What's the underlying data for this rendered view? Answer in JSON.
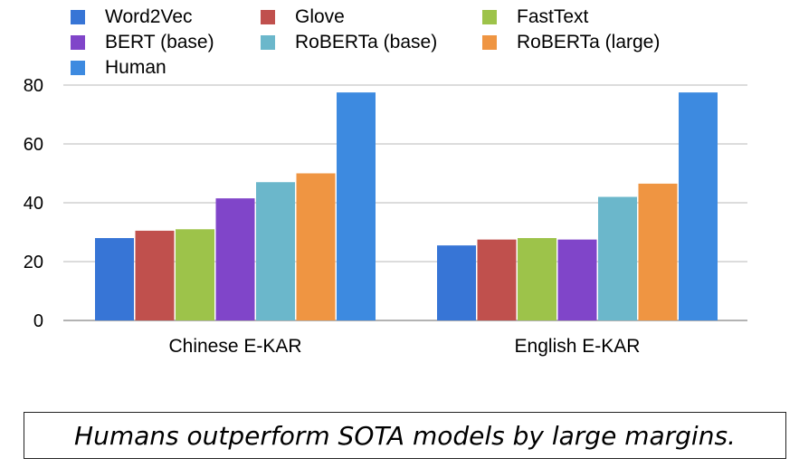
{
  "chart_data": {
    "type": "bar",
    "categories": [
      "Chinese E-KAR",
      "English E-KAR"
    ],
    "series": [
      {
        "name": "Word2Vec",
        "values": [
          28,
          25.5
        ],
        "color": "#3775d6"
      },
      {
        "name": "Glove",
        "values": [
          30.5,
          27.5
        ],
        "color": "#c0504d"
      },
      {
        "name": "FastText",
        "values": [
          31,
          28
        ],
        "color": "#9dc34a"
      },
      {
        "name": "BERT (base)",
        "values": [
          41.5,
          27.5
        ],
        "color": "#8045c9"
      },
      {
        "name": "RoBERTa (base)",
        "values": [
          47,
          42
        ],
        "color": "#6bb7cb"
      },
      {
        "name": "RoBERTa (large)",
        "values": [
          50,
          46.5
        ],
        "color": "#ef9542"
      },
      {
        "name": "Human",
        "values": [
          77.5,
          77.5
        ],
        "color": "#3d8ae0"
      }
    ],
    "yticks": [
      0,
      20,
      40,
      60,
      80
    ],
    "ylim": [
      0,
      80
    ],
    "grid": true,
    "title": "",
    "xlabel": "",
    "ylabel": "",
    "legend_position": "top"
  },
  "caption": "Humans outperform SOTA models by large margins."
}
